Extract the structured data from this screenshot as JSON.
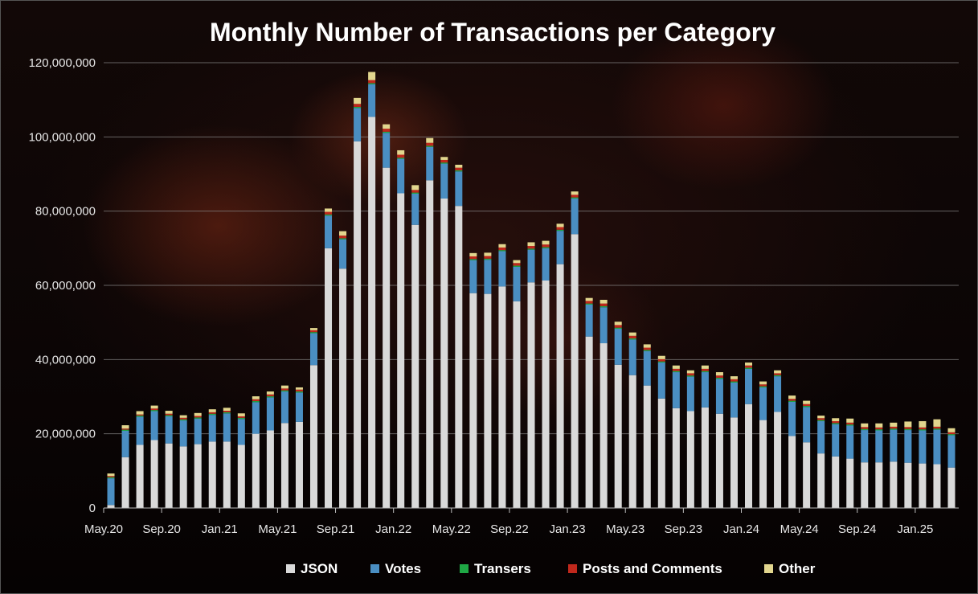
{
  "chart_data": {
    "type": "bar",
    "stacked": true,
    "title": "Monthly Number of Transactions per Category",
    "xlabel": "",
    "ylabel": "",
    "ylim": [
      0,
      120000000
    ],
    "y_ticks": [
      "0",
      "20,000,000",
      "40,000,000",
      "60,000,000",
      "80,000,000",
      "100,000,000",
      "120,000,000"
    ],
    "grid": true,
    "legend_position": "bottom",
    "x_tick_labels": [
      {
        "index": 0,
        "label": "May.20"
      },
      {
        "index": 4,
        "label": "Sep.20"
      },
      {
        "index": 8,
        "label": "Jan.21"
      },
      {
        "index": 12,
        "label": "May.21"
      },
      {
        "index": 16,
        "label": "Sep.21"
      },
      {
        "index": 20,
        "label": "Jan.22"
      },
      {
        "index": 24,
        "label": "May.22"
      },
      {
        "index": 28,
        "label": "Sep.22"
      },
      {
        "index": 32,
        "label": "Jan.23"
      },
      {
        "index": 36,
        "label": "May.23"
      },
      {
        "index": 40,
        "label": "Sep.23"
      },
      {
        "index": 44,
        "label": "Jan.24"
      },
      {
        "index": 48,
        "label": "May.24"
      },
      {
        "index": 52,
        "label": "Sep.24"
      },
      {
        "index": 56,
        "label": "Jan.25"
      }
    ],
    "series": [
      {
        "name": "JSON",
        "color": "#d9d9d9",
        "values": [
          800000,
          13700000,
          17000000,
          18300000,
          17400000,
          16600000,
          17200000,
          17900000,
          17900000,
          17000000,
          20000000,
          20900000,
          22900000,
          23200000,
          38500000,
          70000000,
          64500000,
          98800000,
          105400000,
          91700000,
          84800000,
          76300000,
          88300000,
          83400000,
          81400000,
          57900000,
          57700000,
          59700000,
          55700000,
          60800000,
          61300000,
          65700000,
          73800000,
          46200000,
          44400000,
          38600000,
          35800000,
          33000000,
          29500000,
          26900000,
          26100000,
          27100000,
          25400000,
          24400000,
          28000000,
          23700000,
          25900000,
          19400000,
          17700000,
          14700000,
          13900000,
          13300000,
          12300000,
          12300000,
          12500000,
          12200000,
          12000000,
          11800000,
          10900000
        ]
      },
      {
        "name": "Votes",
        "color": "#4a8ec2",
        "values": [
          7200000,
          7100000,
          7600000,
          7800000,
          7300000,
          7000000,
          6900000,
          7200000,
          7600000,
          7000000,
          8500000,
          8900000,
          8500000,
          7900000,
          8600000,
          8800000,
          7900000,
          9000000,
          8800000,
          9400000,
          9300000,
          8400000,
          9000000,
          9400000,
          9300000,
          8900000,
          9200000,
          9500000,
          9300000,
          8800000,
          8700000,
          9000000,
          9600000,
          8600000,
          9700000,
          9700000,
          9600000,
          9300000,
          9700000,
          9700000,
          9300000,
          9500000,
          9400000,
          9400000,
          9500000,
          8800000,
          9600000,
          9200000,
          9500000,
          8700000,
          8700000,
          8900000,
          8700000,
          8600000,
          8600000,
          8800000,
          8900000,
          9300000,
          8700000
        ]
      },
      {
        "name": "Transers",
        "color": "#1fa845",
        "values": [
          300000,
          300000,
          300000,
          300000,
          300000,
          300000,
          300000,
          300000,
          300000,
          300000,
          300000,
          300000,
          300000,
          300000,
          300000,
          300000,
          300000,
          300000,
          300000,
          300000,
          300000,
          300000,
          300000,
          300000,
          300000,
          300000,
          300000,
          300000,
          300000,
          300000,
          300000,
          300000,
          300000,
          300000,
          300000,
          300000,
          300000,
          300000,
          300000,
          300000,
          300000,
          300000,
          300000,
          300000,
          300000,
          300000,
          300000,
          300000,
          300000,
          300000,
          300000,
          300000,
          300000,
          300000,
          300000,
          300000,
          300000,
          300000,
          300000
        ]
      },
      {
        "name": "Posts and Comments",
        "color": "#c0281c",
        "values": [
          300000,
          300000,
          300000,
          400000,
          400000,
          400000,
          400000,
          400000,
          400000,
          400000,
          500000,
          500000,
          500000,
          500000,
          500000,
          700000,
          700000,
          800000,
          800000,
          800000,
          800000,
          700000,
          800000,
          700000,
          700000,
          700000,
          700000,
          700000,
          700000,
          700000,
          700000,
          700000,
          700000,
          700000,
          700000,
          700000,
          700000,
          600000,
          600000,
          600000,
          600000,
          600000,
          600000,
          600000,
          600000,
          500000,
          500000,
          500000,
          500000,
          500000,
          500000,
          500000,
          500000,
          500000,
          500000,
          500000,
          500000,
          500000,
          500000
        ]
      },
      {
        "name": "Other",
        "color": "#e2d68e",
        "values": [
          700000,
          900000,
          900000,
          800000,
          800000,
          700000,
          800000,
          800000,
          800000,
          800000,
          800000,
          800000,
          800000,
          600000,
          600000,
          900000,
          1200000,
          1600000,
          2200000,
          1200000,
          1200000,
          1300000,
          1300000,
          800000,
          800000,
          900000,
          900000,
          900000,
          800000,
          1000000,
          1000000,
          900000,
          900000,
          800000,
          1000000,
          900000,
          900000,
          900000,
          900000,
          900000,
          800000,
          900000,
          900000,
          800000,
          800000,
          800000,
          800000,
          900000,
          900000,
          700000,
          800000,
          1100000,
          1000000,
          1100000,
          1100000,
          1500000,
          1700000,
          2000000,
          1100000
        ]
      }
    ]
  }
}
